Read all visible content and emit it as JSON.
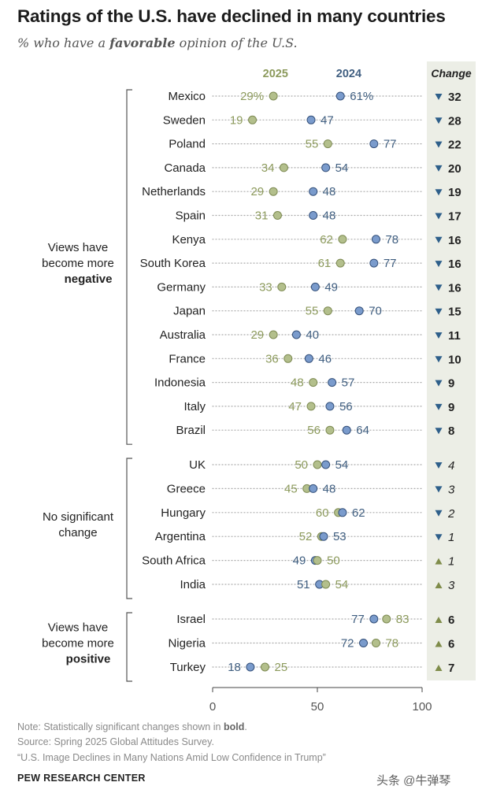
{
  "header": {
    "title": "Ratings of the U.S. have declined in many countries",
    "subtitle_prefix": "% who have a ",
    "subtitle_bold": "favorable",
    "subtitle_suffix": " opinion of the U.S."
  },
  "chart_data": {
    "type": "dot",
    "title": "Ratings of the U.S. have declined in many countries",
    "xlim": [
      0,
      100
    ],
    "xticks": [
      "0",
      "50",
      "100"
    ],
    "series_labels": {
      "y2025": "2025",
      "y2024": "2024"
    },
    "change_header": "Change",
    "colors": {
      "y2025": "#b3bf8c",
      "y2024": "#7a9bcc",
      "y2025_text": "#8c9a5c",
      "y2024_text": "#3f5e80",
      "down": "#2e5f8a",
      "up": "#7f8c4a",
      "change_bg": "#eceee6"
    },
    "groups": [
      {
        "label_lines": [
          "Views have",
          "become more"
        ],
        "label_bold": "negative",
        "rows": [
          {
            "country": "Mexico",
            "v2025": 29,
            "v2024": 61,
            "label2025": "29%",
            "label2024": "61%",
            "change": "32",
            "dir": "down",
            "bold": true
          },
          {
            "country": "Sweden",
            "v2025": 19,
            "v2024": 47,
            "label2025": "19",
            "label2024": "47",
            "change": "28",
            "dir": "down",
            "bold": true
          },
          {
            "country": "Poland",
            "v2025": 55,
            "v2024": 77,
            "label2025": "55",
            "label2024": "77",
            "change": "22",
            "dir": "down",
            "bold": true
          },
          {
            "country": "Canada",
            "v2025": 34,
            "v2024": 54,
            "label2025": "34",
            "label2024": "54",
            "change": "20",
            "dir": "down",
            "bold": true
          },
          {
            "country": "Netherlands",
            "v2025": 29,
            "v2024": 48,
            "label2025": "29",
            "label2024": "48",
            "change": "19",
            "dir": "down",
            "bold": true
          },
          {
            "country": "Spain",
            "v2025": 31,
            "v2024": 48,
            "label2025": "31",
            "label2024": "48",
            "change": "17",
            "dir": "down",
            "bold": true
          },
          {
            "country": "Kenya",
            "v2025": 62,
            "v2024": 78,
            "label2025": "62",
            "label2024": "78",
            "change": "16",
            "dir": "down",
            "bold": true
          },
          {
            "country": "South Korea",
            "v2025": 61,
            "v2024": 77,
            "label2025": "61",
            "label2024": "77",
            "change": "16",
            "dir": "down",
            "bold": true
          },
          {
            "country": "Germany",
            "v2025": 33,
            "v2024": 49,
            "label2025": "33",
            "label2024": "49",
            "change": "16",
            "dir": "down",
            "bold": true
          },
          {
            "country": "Japan",
            "v2025": 55,
            "v2024": 70,
            "label2025": "55",
            "label2024": "70",
            "change": "15",
            "dir": "down",
            "bold": true
          },
          {
            "country": "Australia",
            "v2025": 29,
            "v2024": 40,
            "label2025": "29",
            "label2024": "40",
            "change": "11",
            "dir": "down",
            "bold": true
          },
          {
            "country": "France",
            "v2025": 36,
            "v2024": 46,
            "label2025": "36",
            "label2024": "46",
            "change": "10",
            "dir": "down",
            "bold": true
          },
          {
            "country": "Indonesia",
            "v2025": 48,
            "v2024": 57,
            "label2025": "48",
            "label2024": "57",
            "change": "9",
            "dir": "down",
            "bold": true
          },
          {
            "country": "Italy",
            "v2025": 47,
            "v2024": 56,
            "label2025": "47",
            "label2024": "56",
            "change": "9",
            "dir": "down",
            "bold": true
          },
          {
            "country": "Brazil",
            "v2025": 56,
            "v2024": 64,
            "label2025": "56",
            "label2024": "64",
            "change": "8",
            "dir": "down",
            "bold": true
          }
        ]
      },
      {
        "label_lines": [
          "No significant",
          "change"
        ],
        "label_bold": "",
        "rows": [
          {
            "country": "UK",
            "v2025": 50,
            "v2024": 54,
            "label2025": "50",
            "label2024": "54",
            "change": "4",
            "dir": "down",
            "bold": false
          },
          {
            "country": "Greece",
            "v2025": 45,
            "v2024": 48,
            "label2025": "45",
            "label2024": "48",
            "change": "3",
            "dir": "down",
            "bold": false
          },
          {
            "country": "Hungary",
            "v2025": 60,
            "v2024": 62,
            "label2025": "60",
            "label2024": "62",
            "change": "2",
            "dir": "down",
            "bold": false
          },
          {
            "country": "Argentina",
            "v2025": 52,
            "v2024": 53,
            "label2025": "52",
            "label2024": "53",
            "change": "1",
            "dir": "down",
            "bold": false
          },
          {
            "country": "South Africa",
            "v2025": 50,
            "v2024": 49,
            "label2025": "50",
            "label2024": "49",
            "change": "1",
            "dir": "up",
            "bold": false
          },
          {
            "country": "India",
            "v2025": 54,
            "v2024": 51,
            "label2025": "54",
            "label2024": "51",
            "change": "3",
            "dir": "up",
            "bold": false
          }
        ]
      },
      {
        "label_lines": [
          "Views have",
          "become more"
        ],
        "label_bold": "positive",
        "rows": [
          {
            "country": "Israel",
            "v2025": 83,
            "v2024": 77,
            "label2025": "83",
            "label2024": "77",
            "change": "6",
            "dir": "up",
            "bold": true
          },
          {
            "country": "Nigeria",
            "v2025": 78,
            "v2024": 72,
            "label2025": "78",
            "label2024": "72",
            "change": "6",
            "dir": "up",
            "bold": true
          },
          {
            "country": "Turkey",
            "v2025": 25,
            "v2024": 18,
            "label2025": "25",
            "label2024": "18",
            "change": "7",
            "dir": "up",
            "bold": true
          }
        ]
      }
    ]
  },
  "footer": {
    "note_prefix": "Note: Statistically significant changes shown in ",
    "note_bold": "bold",
    "note_suffix": ".",
    "source": "Source: Spring 2025 Global Attitudes Survey.",
    "report": "“U.S. Image Declines in Many Nations Amid Low Confidence in Trump”",
    "brand": "PEW RESEARCH CENTER",
    "watermark": "头条 @牛弹琴"
  }
}
